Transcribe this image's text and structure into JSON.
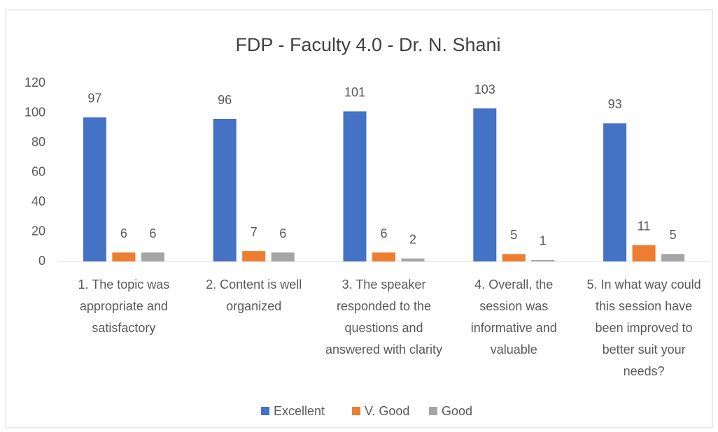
{
  "chart_data": {
    "type": "bar",
    "title": "FDP - Faculty 4.0 - Dr. N. Shani",
    "categories": [
      "1. The topic was appropriate and satisfactory",
      "2. Content is well organized",
      "3. The speaker responded to the questions and answered with clarity",
      "4. Overall, the session was informative and valuable",
      "5. In what way could this session have been improved to better suit your needs?"
    ],
    "series": [
      {
        "name": "Excellent",
        "color": "#4472c4",
        "values": [
          97,
          96,
          101,
          103,
          93
        ]
      },
      {
        "name": "V. Good",
        "color": "#ed7d31",
        "values": [
          6,
          7,
          6,
          5,
          11
        ]
      },
      {
        "name": "Good",
        "color": "#a5a5a5",
        "values": [
          6,
          6,
          2,
          1,
          5
        ]
      }
    ],
    "ylim": [
      0,
      120
    ],
    "yticks": [
      0,
      20,
      40,
      60,
      80,
      100,
      120
    ],
    "grid": false,
    "legend": "bottom"
  }
}
